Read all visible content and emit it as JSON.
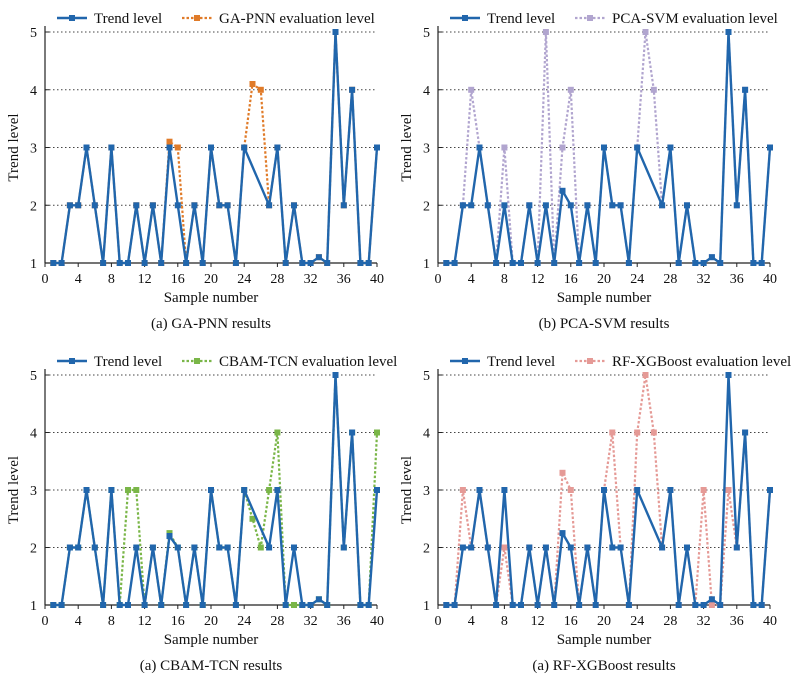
{
  "figure": {
    "x_ticks": [
      0,
      4,
      8,
      12,
      16,
      20,
      24,
      28,
      32,
      36,
      40
    ],
    "y_ticks": [
      1,
      2,
      3,
      4,
      5
    ]
  },
  "chart_data": [
    {
      "type": "line",
      "caption": "(a) GA-PNN results",
      "xlabel": "Sample number",
      "ylabel": "Trend level",
      "xlim": [
        0,
        40
      ],
      "ylim": [
        1,
        5
      ],
      "grid": "horizontal dotted",
      "legend": "top",
      "series": [
        {
          "name": "Trend level",
          "color": "#2166ac",
          "dash": "solid",
          "x": [
            1,
            2,
            3,
            4,
            5,
            6,
            7,
            8,
            9,
            10,
            11,
            12,
            13,
            14,
            15,
            16,
            17,
            18,
            19,
            20,
            21,
            22,
            23,
            24,
            27,
            28,
            29,
            30,
            31,
            32,
            33,
            34,
            35,
            36,
            37,
            38,
            39,
            40
          ],
          "y": [
            1,
            1,
            2,
            2,
            3,
            2,
            1,
            3,
            1,
            1,
            2,
            1,
            2,
            1,
            3,
            2,
            1,
            2,
            1,
            3,
            2,
            2,
            1,
            3,
            2,
            3,
            1,
            2,
            1,
            1,
            1.1,
            1,
            5,
            2,
            4,
            1,
            1,
            3
          ]
        },
        {
          "name": "GA-PNN evaluation level",
          "color": "#e07b29",
          "dash": "dotted",
          "x": [
            1,
            2,
            3,
            4,
            5,
            6,
            7,
            8,
            9,
            10,
            11,
            12,
            13,
            14,
            15,
            16,
            17,
            18,
            19,
            20,
            21,
            22,
            23,
            24,
            25,
            26,
            27,
            28,
            29,
            30,
            31,
            32,
            33,
            34,
            35,
            36,
            37,
            38,
            39,
            40
          ],
          "y": [
            1,
            1,
            2,
            2,
            3,
            2,
            1,
            3,
            1,
            1,
            2,
            1,
            2,
            1,
            3.1,
            3,
            1,
            2,
            1,
            3,
            2,
            2,
            1,
            3,
            4.1,
            4,
            2,
            3,
            1,
            2,
            1,
            1,
            1.1,
            1,
            5,
            2,
            4,
            1,
            1,
            3
          ]
        }
      ]
    },
    {
      "type": "line",
      "caption": "(b) PCA-SVM results",
      "xlabel": "Sample number",
      "ylabel": "Trend level",
      "xlim": [
        0,
        40
      ],
      "ylim": [
        1,
        5
      ],
      "grid": "horizontal dotted",
      "legend": "top",
      "series": [
        {
          "name": "Trend level",
          "color": "#2166ac",
          "dash": "solid",
          "x": [
            1,
            2,
            3,
            4,
            5,
            6,
            7,
            8,
            9,
            10,
            11,
            12,
            13,
            14,
            15,
            16,
            17,
            18,
            19,
            20,
            21,
            22,
            23,
            24,
            27,
            28,
            29,
            30,
            31,
            32,
            33,
            34,
            35,
            36,
            37,
            38,
            39,
            40
          ],
          "y": [
            1,
            1,
            2,
            2,
            3,
            2,
            1,
            2,
            1,
            1,
            2,
            1,
            2,
            1,
            2.25,
            2,
            1,
            2,
            1,
            3,
            2,
            2,
            1,
            3,
            2,
            3,
            1,
            2,
            1,
            1,
            1.1,
            1,
            5,
            2,
            4,
            1,
            1,
            3
          ]
        },
        {
          "name": "PCA-SVM evaluation level",
          "color": "#b1a5cf",
          "dash": "dotted",
          "x": [
            1,
            2,
            3,
            4,
            5,
            6,
            7,
            8,
            9,
            10,
            11,
            12,
            13,
            14,
            15,
            16,
            17,
            18,
            19,
            20,
            21,
            22,
            23,
            24,
            25,
            26,
            27,
            28,
            29,
            30,
            31,
            32,
            33,
            34,
            35,
            36,
            37,
            38,
            39,
            40
          ],
          "y": [
            1,
            1,
            2,
            4,
            3,
            2,
            1,
            3,
            1,
            1,
            2,
            1,
            5,
            1,
            3,
            4,
            1,
            2,
            1,
            3,
            2,
            2,
            1,
            3,
            5,
            4,
            2,
            3,
            1,
            2,
            1,
            1,
            1.1,
            1,
            5,
            2,
            4,
            1,
            1,
            3
          ]
        }
      ]
    },
    {
      "type": "line",
      "caption": "(a) CBAM-TCN results",
      "xlabel": "Sample number",
      "ylabel": "Trend level",
      "xlim": [
        0,
        40
      ],
      "ylim": [
        1,
        5
      ],
      "grid": "horizontal dotted",
      "legend": "top",
      "series": [
        {
          "name": "Trend level",
          "color": "#2166ac",
          "dash": "solid",
          "x": [
            1,
            2,
            3,
            4,
            5,
            6,
            7,
            8,
            9,
            10,
            11,
            12,
            13,
            14,
            15,
            16,
            17,
            18,
            19,
            20,
            21,
            22,
            23,
            24,
            27,
            28,
            29,
            30,
            31,
            32,
            33,
            34,
            35,
            36,
            37,
            38,
            39,
            40
          ],
          "y": [
            1,
            1,
            2,
            2,
            3,
            2,
            1,
            3,
            1,
            1,
            2,
            1,
            2,
            1,
            2.2,
            2,
            1,
            2,
            1,
            3,
            2,
            2,
            1,
            3,
            2,
            3,
            1,
            2,
            1,
            1,
            1.1,
            1,
            5,
            2,
            4,
            1,
            1,
            3
          ]
        },
        {
          "name": "CBAM-TCN evaluation level",
          "color": "#7ab648",
          "dash": "dotted",
          "x": [
            1,
            2,
            3,
            4,
            5,
            6,
            7,
            8,
            9,
            10,
            11,
            12,
            13,
            14,
            15,
            16,
            17,
            18,
            19,
            20,
            21,
            22,
            23,
            24,
            25,
            26,
            27,
            28,
            29,
            30,
            31,
            32,
            33,
            34,
            35,
            36,
            37,
            38,
            39,
            40
          ],
          "y": [
            1,
            1,
            2,
            2,
            3,
            2,
            1,
            3,
            1,
            3,
            3,
            1,
            2,
            1,
            2.25,
            2,
            1,
            2,
            1,
            3,
            2,
            2,
            1,
            3,
            2.5,
            2,
            3,
            4,
            1,
            1,
            1,
            1,
            1.1,
            1,
            5,
            2,
            4,
            1,
            1,
            4
          ]
        }
      ]
    },
    {
      "type": "line",
      "caption": "(a) RF-XGBoost results",
      "xlabel": "Sample number",
      "ylabel": "Trend level",
      "xlim": [
        0,
        40
      ],
      "ylim": [
        1,
        5
      ],
      "grid": "horizontal dotted",
      "legend": "top",
      "series": [
        {
          "name": "Trend level",
          "color": "#2166ac",
          "dash": "solid",
          "x": [
            1,
            2,
            3,
            4,
            5,
            6,
            7,
            8,
            9,
            10,
            11,
            12,
            13,
            14,
            15,
            16,
            17,
            18,
            19,
            20,
            21,
            22,
            23,
            24,
            27,
            28,
            29,
            30,
            31,
            32,
            33,
            34,
            35,
            36,
            37,
            38,
            39,
            40
          ],
          "y": [
            1,
            1,
            2,
            2,
            3,
            2,
            1,
            3,
            1,
            1,
            2,
            1,
            2,
            1,
            2.25,
            2,
            1,
            2,
            1,
            3,
            2,
            2,
            1,
            3,
            2,
            3,
            1,
            2,
            1,
            1,
            1.1,
            1,
            5,
            2,
            4,
            1,
            1,
            3
          ]
        },
        {
          "name": "RF-XGBoost evaluation level",
          "color": "#e59a96",
          "dash": "dotted",
          "x": [
            1,
            2,
            3,
            4,
            5,
            6,
            7,
            8,
            9,
            10,
            11,
            12,
            13,
            14,
            15,
            16,
            17,
            18,
            19,
            20,
            21,
            22,
            23,
            24,
            25,
            26,
            27,
            28,
            29,
            30,
            31,
            32,
            33,
            34,
            35,
            36,
            37,
            38,
            39,
            40
          ],
          "y": [
            1,
            1,
            3,
            2,
            3,
            2,
            1,
            2,
            1,
            1,
            2,
            1,
            2,
            1,
            3.3,
            3,
            1,
            2,
            1,
            3,
            4,
            2,
            1,
            4,
            5,
            4,
            2,
            3,
            1,
            2,
            1,
            3,
            1,
            1,
            3,
            2,
            4,
            1,
            1,
            3
          ]
        }
      ]
    }
  ]
}
